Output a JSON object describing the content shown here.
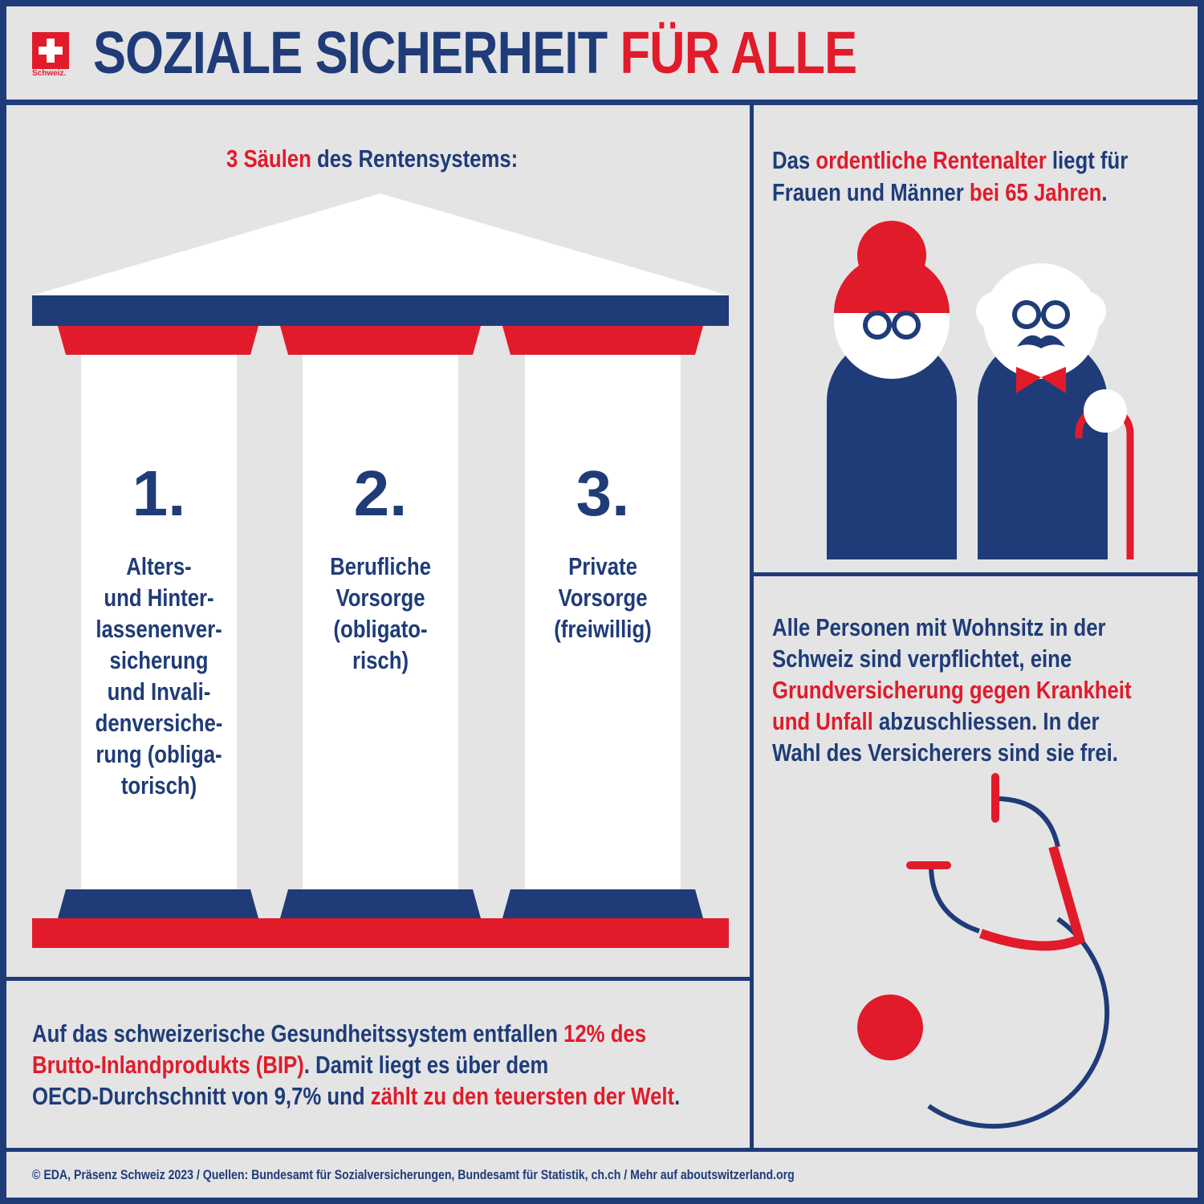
{
  "brand": {
    "logo_text": "Schweiz.",
    "colors": {
      "red": "#e11b2a",
      "blue": "#1f3c78",
      "background": "#e4e4e5",
      "white": "#ffffff"
    }
  },
  "header": {
    "title_part1": "SOZIALE SICHERHEIT ",
    "title_part2": "FÜR ALLE"
  },
  "pillars": {
    "heading_red": "3 Säulen",
    "heading_rest": " des Rentensystems:",
    "items": [
      {
        "number": "1.",
        "lines": [
          "Alters-",
          "und Hinter-",
          "lassenenver-",
          "sicherung",
          "und Invali-",
          "denversiche-",
          "rung (obliga-",
          "torisch)"
        ]
      },
      {
        "number": "2.",
        "lines": [
          "Berufliche",
          "Vorsorge",
          "(obligato-",
          "risch)"
        ]
      },
      {
        "number": "3.",
        "lines": [
          "Private",
          "Vorsorge",
          "(freiwillig)"
        ]
      }
    ]
  },
  "retirement": {
    "t1": "Das ",
    "t2": "ordentliche Rentenalter",
    "t3": " liegt für",
    "t4": "Frauen und Männer ",
    "t5": "bei 65 Jahren",
    "t6": "."
  },
  "insurance": {
    "t1": "Alle Personen mit Wohnsitz in der",
    "t2": "Schweiz sind verpflichtet, eine",
    "t3": "Grundversicherung gegen Krankheit",
    "t4": "und Unfall",
    "t5": " abzuschliessen. In der",
    "t6": "Wahl des Versicherers sind sie frei."
  },
  "health_gdp": {
    "t1": "Auf das schweizerische Gesundheitssystem entfallen ",
    "t2": "12% des",
    "t3": "Brutto-Inlandprodukts (BIP)",
    "t4": ". Damit liegt es über dem",
    "t5": "OECD-Durchschnitt von 9,7% und ",
    "t6": "zählt zu den teuersten der Welt",
    "t7": "."
  },
  "footer": {
    "text": "© EDA, Präsenz Schweiz 2023 / Quellen: Bundesamt für Sozialversicherungen, Bundesamt für Statistik, ch.ch / Mehr auf aboutswitzerland.org"
  }
}
